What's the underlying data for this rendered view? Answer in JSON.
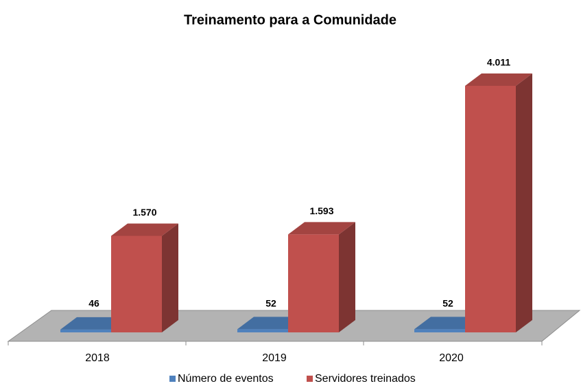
{
  "chart_data": {
    "type": "bar3d",
    "title": "Treinamento para a Comunidade",
    "categories": [
      "2018",
      "2019",
      "2020"
    ],
    "series": [
      {
        "name": "Número de eventos",
        "color": "#4f81bd",
        "values": [
          46,
          52,
          52
        ]
      },
      {
        "name": "Servidores treinados",
        "color": "#c0504d",
        "values": [
          1570,
          1593,
          4011
        ],
        "value_labels": [
          "1.570",
          "1.593",
          "4.011"
        ]
      }
    ]
  }
}
